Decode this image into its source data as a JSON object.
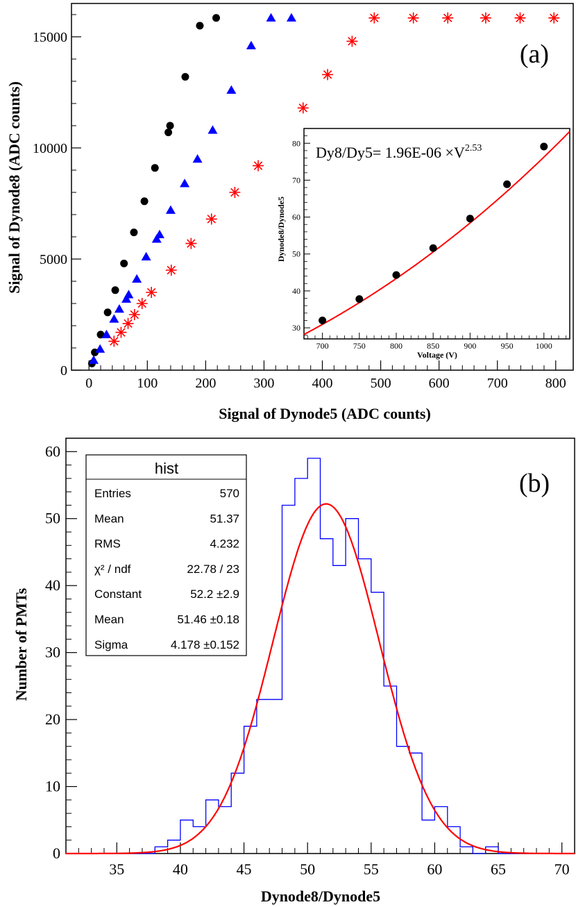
{
  "chart_data": [
    {
      "panel_label": "(a)",
      "type": "scatter",
      "xlabel": "Signal of Dynode5 (ADC counts)",
      "ylabel": "Signal of Dynode8 (ADC counts)",
      "xlim": [
        -30,
        830
      ],
      "ylim": [
        0,
        16500
      ],
      "xticks": [
        0,
        100,
        200,
        300,
        400,
        500,
        600,
        700,
        800
      ],
      "yticks": [
        0,
        5000,
        10000,
        15000
      ],
      "colors": {
        "black": "#000000",
        "blue": "#0000ff",
        "red": "#ff0000"
      },
      "series": [
        {
          "name": "black-circles",
          "marker": "circle",
          "color": "#000000",
          "x": [
            5,
            10,
            20,
            32,
            45,
            60,
            77,
            95,
            113,
            136,
            139,
            165,
            190,
            218
          ],
          "y": [
            300,
            800,
            1600,
            2600,
            3600,
            4800,
            6200,
            7600,
            9100,
            10700,
            11000,
            13200,
            15500,
            15850
          ]
        },
        {
          "name": "blue-triangles",
          "marker": "triangle",
          "color": "#0000ff",
          "x": [
            8,
            19,
            30,
            43,
            52,
            64,
            68,
            82,
            98,
            116,
            121,
            140,
            164,
            186,
            212,
            244,
            278,
            312,
            347
          ],
          "y": [
            450,
            950,
            1600,
            2300,
            2750,
            3200,
            3400,
            4100,
            5100,
            5900,
            6100,
            7200,
            8400,
            9500,
            10800,
            12600,
            14600,
            15850,
            15850
          ]
        },
        {
          "name": "red-stars",
          "marker": "star",
          "color": "#ff0000",
          "x": [
            43,
            55,
            67,
            78,
            91,
            107,
            141,
            175,
            210,
            250,
            290,
            367,
            409,
            451,
            489,
            556,
            615,
            680,
            739,
            797
          ],
          "y": [
            1300,
            1700,
            2100,
            2500,
            3000,
            3500,
            4500,
            5700,
            6800,
            8000,
            9200,
            11800,
            13300,
            14800,
            15850,
            15850,
            15850,
            15850,
            15850,
            15850
          ]
        }
      ],
      "inset": {
        "type": "scatter",
        "xlabel": "Voltage (V)",
        "ylabel": "Dynode8/Dynode5",
        "xlim": [
          675,
          1035
        ],
        "ylim": [
          27,
          84
        ],
        "xticks": [
          700,
          750,
          800,
          850,
          900,
          950,
          1000
        ],
        "yticks": [
          30,
          40,
          50,
          60,
          70,
          80
        ],
        "fit_label": "Dy8/Dy5= 1.96E-06 ×V",
        "fit_exponent": "2.53",
        "fit_coefficient": 1.96e-06,
        "fit_power": 2.53,
        "fit_color": "#ff0000",
        "points": {
          "x": [
            700,
            750,
            800,
            850,
            900,
            950,
            1000
          ],
          "y": [
            32,
            37.8,
            44.3,
            51.6,
            59.6,
            68.9,
            79.1
          ]
        }
      }
    },
    {
      "panel_label": "(b)",
      "type": "histogram",
      "xlabel": "Dynode8/Dynode5",
      "ylabel": "Number of PMTs",
      "xlim": [
        31,
        71
      ],
      "ylim": [
        0,
        62
      ],
      "xticks": [
        35,
        40,
        45,
        50,
        55,
        60,
        65,
        70
      ],
      "yticks": [
        0,
        10,
        20,
        30,
        40,
        50,
        60
      ],
      "bin_start": 31,
      "bin_width": 1,
      "counts": [
        0,
        0,
        0,
        0,
        0,
        0,
        0,
        1,
        2,
        5,
        4,
        8,
        7,
        12,
        19,
        23,
        23,
        52,
        56,
        59,
        47,
        43,
        50,
        44,
        39,
        25,
        16,
        15,
        5,
        7,
        4,
        1,
        0,
        1,
        0,
        0,
        0,
        0,
        0,
        0
      ],
      "hist_color": "#0000ff",
      "fit": {
        "function": "gaus",
        "color": "#ff0000",
        "constant": 52.2,
        "mean": 51.46,
        "sigma": 4.178
      },
      "stats_box": {
        "title": "hist",
        "rows": [
          {
            "label": "Entries",
            "value": "570"
          },
          {
            "label": "Mean",
            "value": "51.37"
          },
          {
            "label": "RMS",
            "value": "4.232"
          },
          {
            "label": "χ² / ndf",
            "value": "22.78 / 23"
          },
          {
            "label": "Constant",
            "value": "52.2 ±2.9"
          },
          {
            "label": "Mean",
            "value": "51.46 ±0.18"
          },
          {
            "label": "Sigma",
            "value": "4.178 ±0.152"
          }
        ]
      }
    }
  ]
}
